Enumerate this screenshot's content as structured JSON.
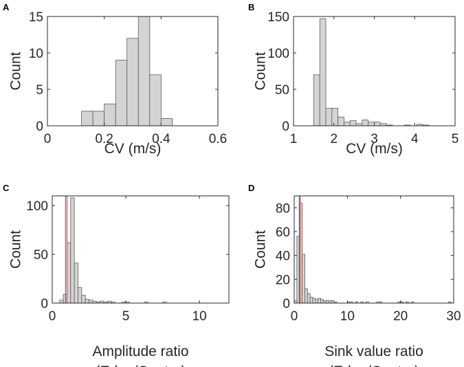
{
  "chart_data": [
    {
      "panel": "A",
      "type": "bar",
      "bar_style": "histogram",
      "bin_edges": [
        0.12,
        0.16,
        0.2,
        0.24,
        0.28,
        0.32,
        0.36,
        0.4,
        0.44,
        0.48,
        0.52
      ],
      "values": [
        2,
        2,
        3,
        9,
        12,
        15,
        7,
        1,
        0,
        0
      ],
      "xlim": [
        0,
        0.6
      ],
      "ylim": [
        0,
        15
      ],
      "xticks": [
        "0",
        "0.2",
        "0.4",
        "0.6"
      ],
      "yticks": [
        "0",
        "5",
        "10",
        "15"
      ],
      "xlabel": [
        "CV (m/s)"
      ],
      "ylabel": "Count",
      "bar_color": "#d4d4d4",
      "edge_color": "#5a5a5a",
      "ref_lines": []
    },
    {
      "panel": "B",
      "type": "bar",
      "bar_style": "histogram",
      "bin_edges": [
        1.5,
        1.65,
        1.8,
        1.95,
        2.1,
        2.25,
        2.4,
        2.55,
        2.7,
        2.85,
        3.0,
        3.15,
        3.3,
        3.45,
        3.6,
        3.75,
        3.9,
        4.05,
        4.2,
        4.35
      ],
      "values": [
        70,
        147,
        24,
        24,
        12,
        5,
        7,
        3,
        8,
        5,
        5,
        3,
        1,
        0,
        0,
        1,
        0,
        2,
        1
      ],
      "xlim": [
        1,
        5
      ],
      "ylim": [
        0,
        150
      ],
      "xticks": [
        "1",
        "2",
        "3",
        "4",
        "5"
      ],
      "yticks": [
        "0",
        "50",
        "100",
        "150"
      ],
      "xlabel": [
        "CV (m/s)"
      ],
      "ylabel": "Count",
      "bar_color": "#d4d4d4",
      "edge_color": "#5a5a5a",
      "ref_lines": []
    },
    {
      "panel": "C",
      "type": "bar",
      "bar_style": "histogram",
      "bin_edges": [
        0.5,
        0.75,
        1.0,
        1.25,
        1.5,
        1.75,
        2.0,
        2.25,
        2.5,
        2.75,
        3.0,
        3.25,
        3.5,
        3.75,
        4.0,
        4.25,
        4.5,
        4.75,
        5.0,
        5.25,
        5.5,
        5.75,
        6.0,
        6.25,
        6.5,
        6.75,
        7.0,
        7.25,
        7.5,
        7.75,
        8.0
      ],
      "values": [
        3,
        9,
        62,
        108,
        41,
        16,
        8,
        4,
        3,
        2,
        1,
        2,
        1,
        2,
        1,
        0,
        0,
        1,
        1,
        0,
        0,
        0,
        0,
        1,
        0,
        0,
        0,
        0,
        1,
        0
      ],
      "xlim": [
        0,
        12
      ],
      "ylim": [
        0,
        110
      ],
      "xticks": [
        "0",
        "5",
        "10"
      ],
      "yticks": [
        "0",
        "50",
        "100"
      ],
      "xlabel": [
        "Amplitude ratio",
        "(Edge/Center)"
      ],
      "ylabel": "Count",
      "bar_color": "#d4d4d4",
      "edge_color": "#5a5a5a",
      "ref_lines": [
        {
          "x": 0.9,
          "color": "#4a7ab5"
        },
        {
          "x": 1.0,
          "color": "#e03c31"
        }
      ]
    },
    {
      "panel": "D",
      "type": "bar",
      "bar_style": "histogram",
      "bin_edges": [
        0.0,
        0.5,
        1.0,
        1.5,
        2.0,
        2.5,
        3.0,
        3.5,
        4.0,
        4.5,
        5.0,
        5.5,
        6.0,
        6.5,
        7.0,
        7.5,
        8.0,
        8.5,
        9.0,
        9.5,
        10.0,
        10.5,
        11.0,
        11.5,
        12.0,
        12.5,
        13.0,
        13.5,
        14.0,
        14.5,
        15.0,
        15.5,
        16.0,
        16.5,
        17.0,
        17.5,
        18.0,
        18.5,
        19.0,
        19.5,
        20.0,
        20.5,
        21.0,
        21.5,
        22.0,
        22.5,
        23.0,
        23.5,
        24.0,
        24.5,
        25.0,
        25.5,
        26.0,
        26.5,
        27.0,
        27.5,
        28.0,
        28.5,
        29.0,
        29.5
      ],
      "values": [
        2,
        56,
        84,
        41,
        12,
        8,
        5,
        4,
        3,
        4,
        3,
        2,
        2,
        2,
        2,
        1,
        0,
        0,
        0,
        0,
        1,
        1,
        0,
        1,
        0,
        1,
        0,
        1,
        0,
        0,
        0,
        1,
        1,
        0,
        0,
        0,
        0,
        0,
        0,
        1,
        1,
        0,
        1,
        0,
        1,
        0,
        0,
        0,
        0,
        0,
        0,
        0,
        0,
        0,
        0,
        0,
        0,
        0,
        1
      ],
      "xlim": [
        0,
        30
      ],
      "ylim": [
        0,
        90
      ],
      "xticks": [
        "0",
        "10",
        "20",
        "30"
      ],
      "yticks": [
        "0",
        "20",
        "40",
        "60",
        "80"
      ],
      "xlabel": [
        "Sink value ratio",
        "(Edge/Center)"
      ],
      "ylabel": "Count",
      "bar_color": "#d4d4d4",
      "edge_color": "#5a5a5a",
      "ref_lines": [
        {
          "x": 0.95,
          "color": "#4a7ab5"
        },
        {
          "x": 1.1,
          "color": "#e03c31"
        }
      ]
    }
  ]
}
